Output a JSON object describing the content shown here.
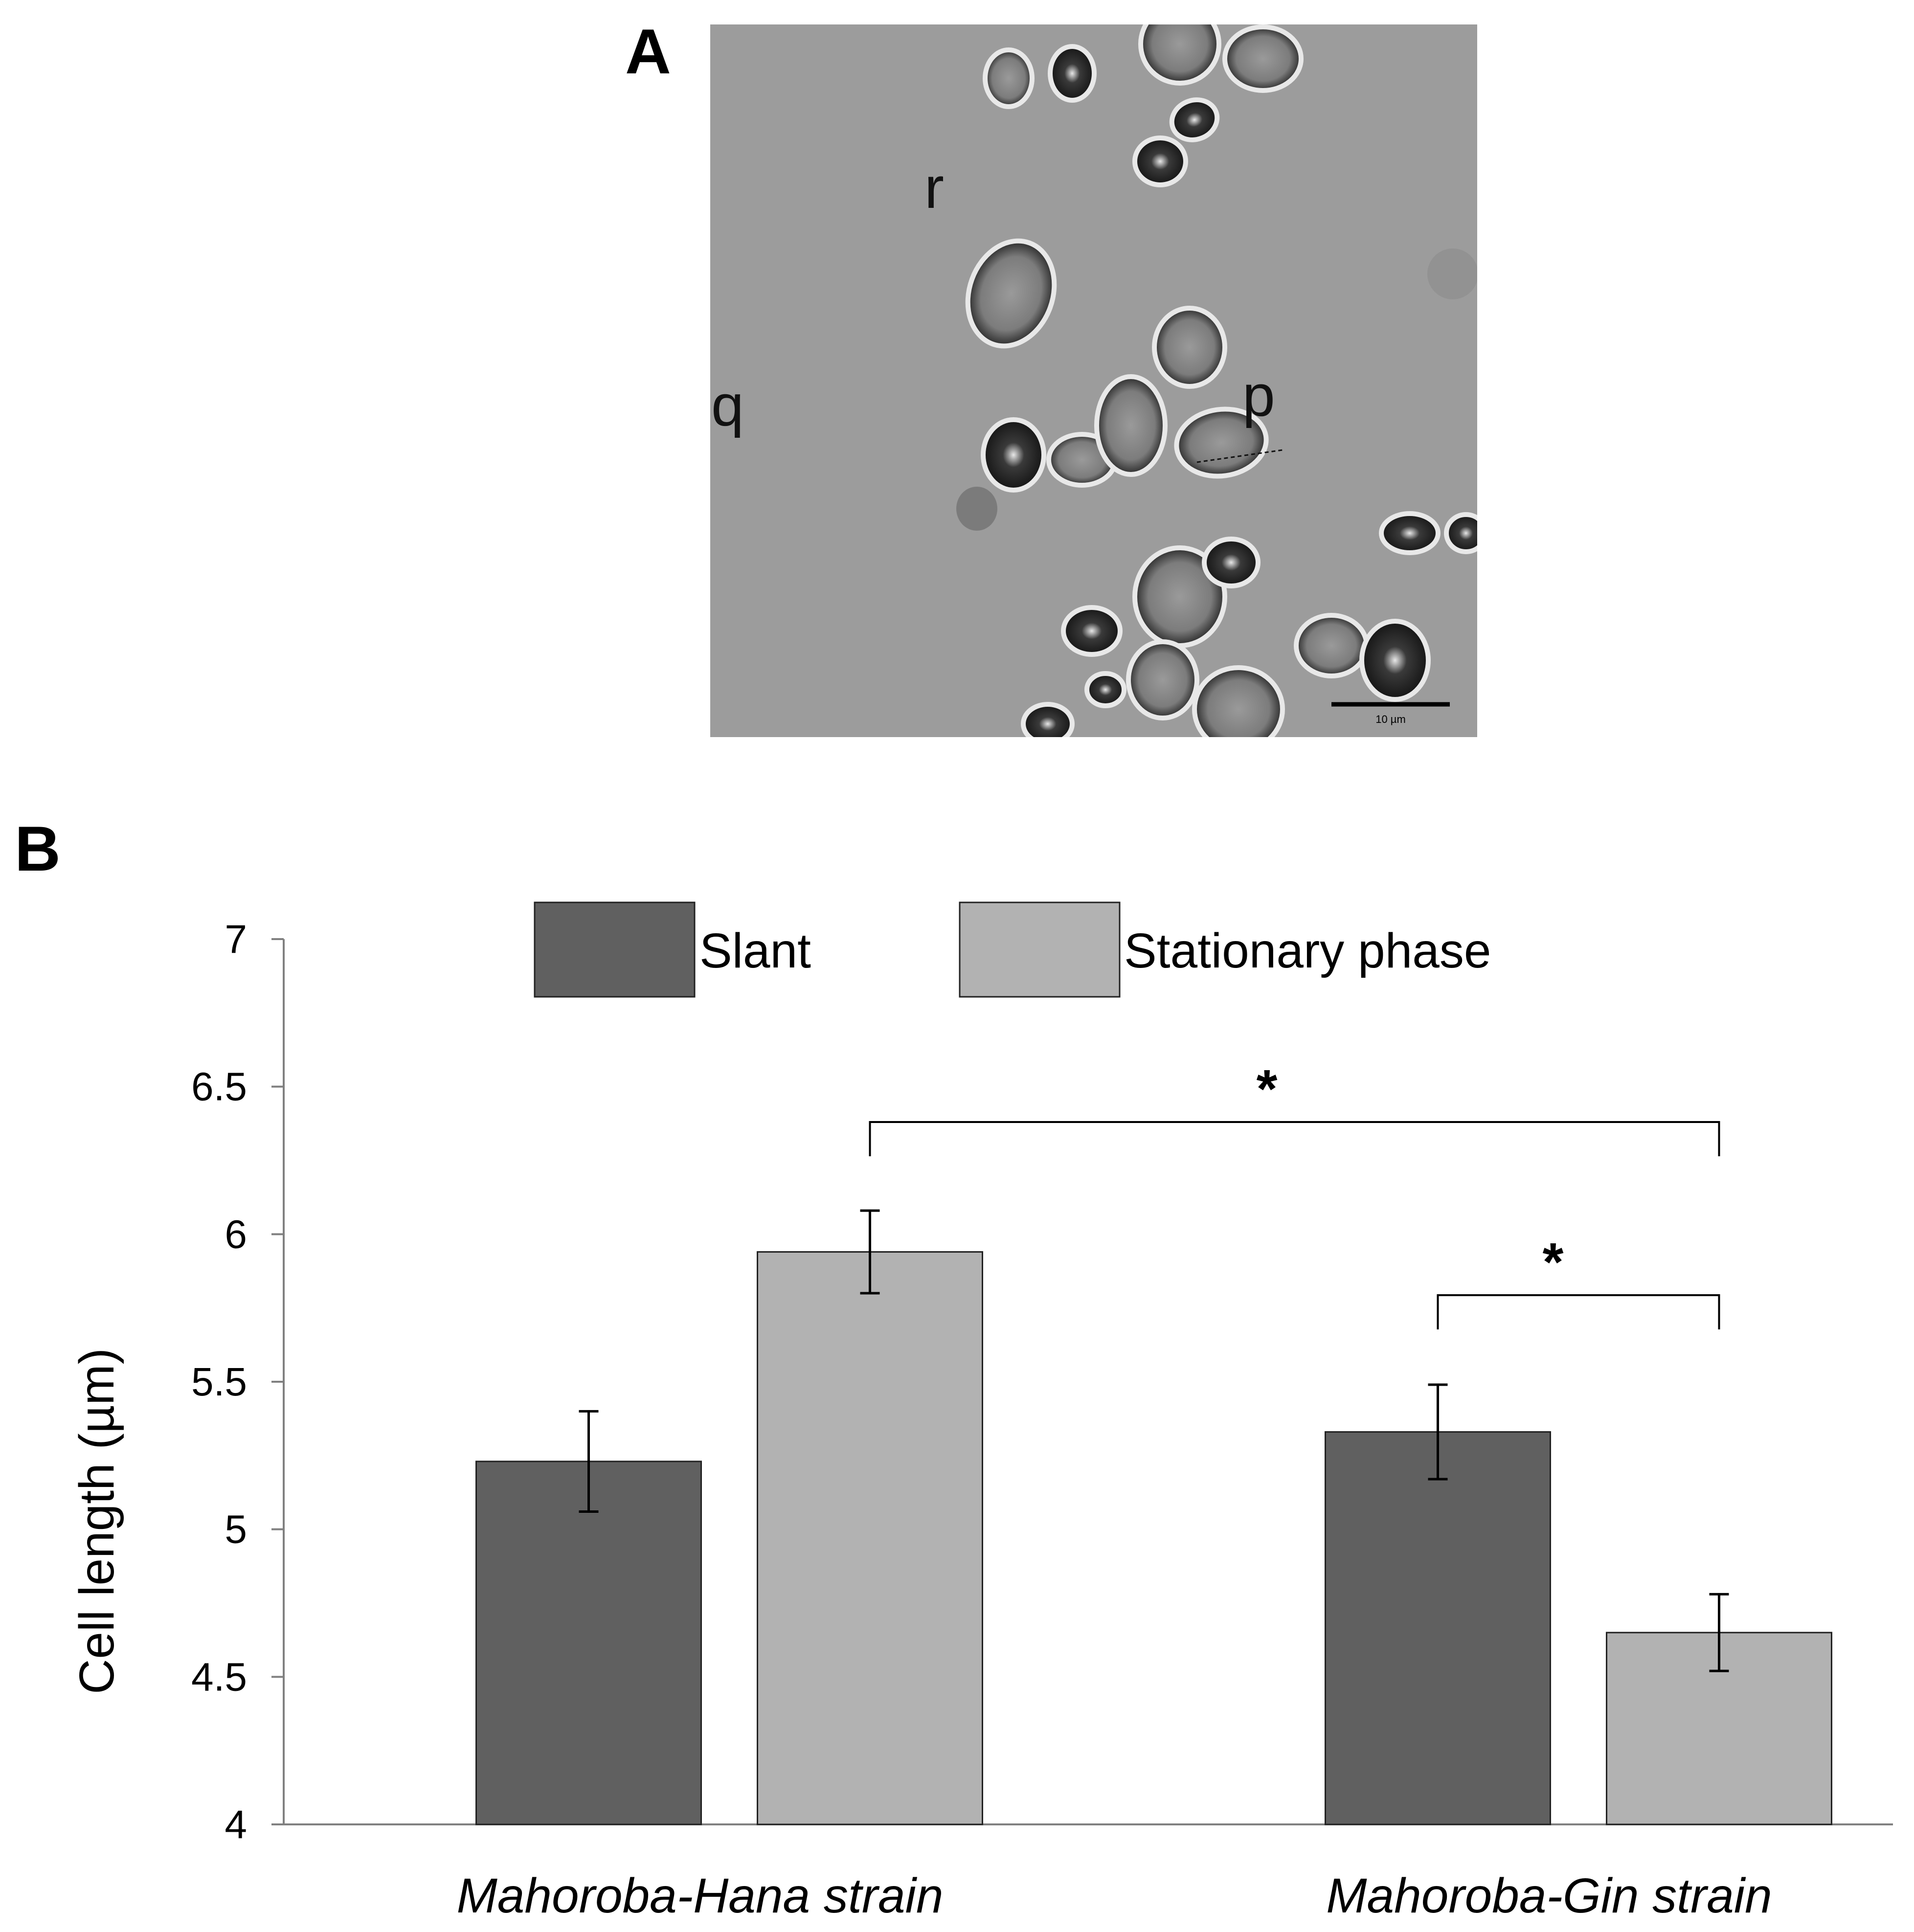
{
  "panel_a": {
    "label": "A",
    "cell_labels": [
      "r",
      "q",
      "p"
    ],
    "scale_bar_text": "10 µm"
  },
  "panel_b": {
    "label": "B"
  },
  "chart_data": {
    "type": "bar",
    "categories": [
      "Mahoroba-Hana strain",
      "Mahoroba-Gin strain"
    ],
    "series": [
      {
        "name": "Slant",
        "values": [
          5.23,
          5.33
        ],
        "errors": [
          0.17,
          0.16
        ]
      },
      {
        "name": "Stationary phase",
        "values": [
          5.94,
          4.65
        ],
        "errors": [
          0.14,
          0.13
        ]
      }
    ],
    "colors": {
      "Slant": "#606060",
      "Stationary phase": "#b2b2b2",
      "axis": "#808080"
    },
    "title": "",
    "xlabel": "",
    "ylabel": "Cell length  (µm)",
    "ylim": [
      4,
      7
    ],
    "yticks": [
      "4",
      "4.5",
      "5",
      "5.5",
      "6",
      "6.5",
      "7"
    ],
    "grid": false,
    "legend_placement": "top",
    "significance": [
      {
        "label": "*",
        "between": [
          "Mahoroba-Hana strain / Stationary phase",
          "Mahoroba-Gin strain / Stationary phase"
        ]
      },
      {
        "label": "*",
        "between": [
          "Mahoroba-Gin strain / Slant",
          "Mahoroba-Gin strain / Stationary phase"
        ]
      }
    ]
  }
}
